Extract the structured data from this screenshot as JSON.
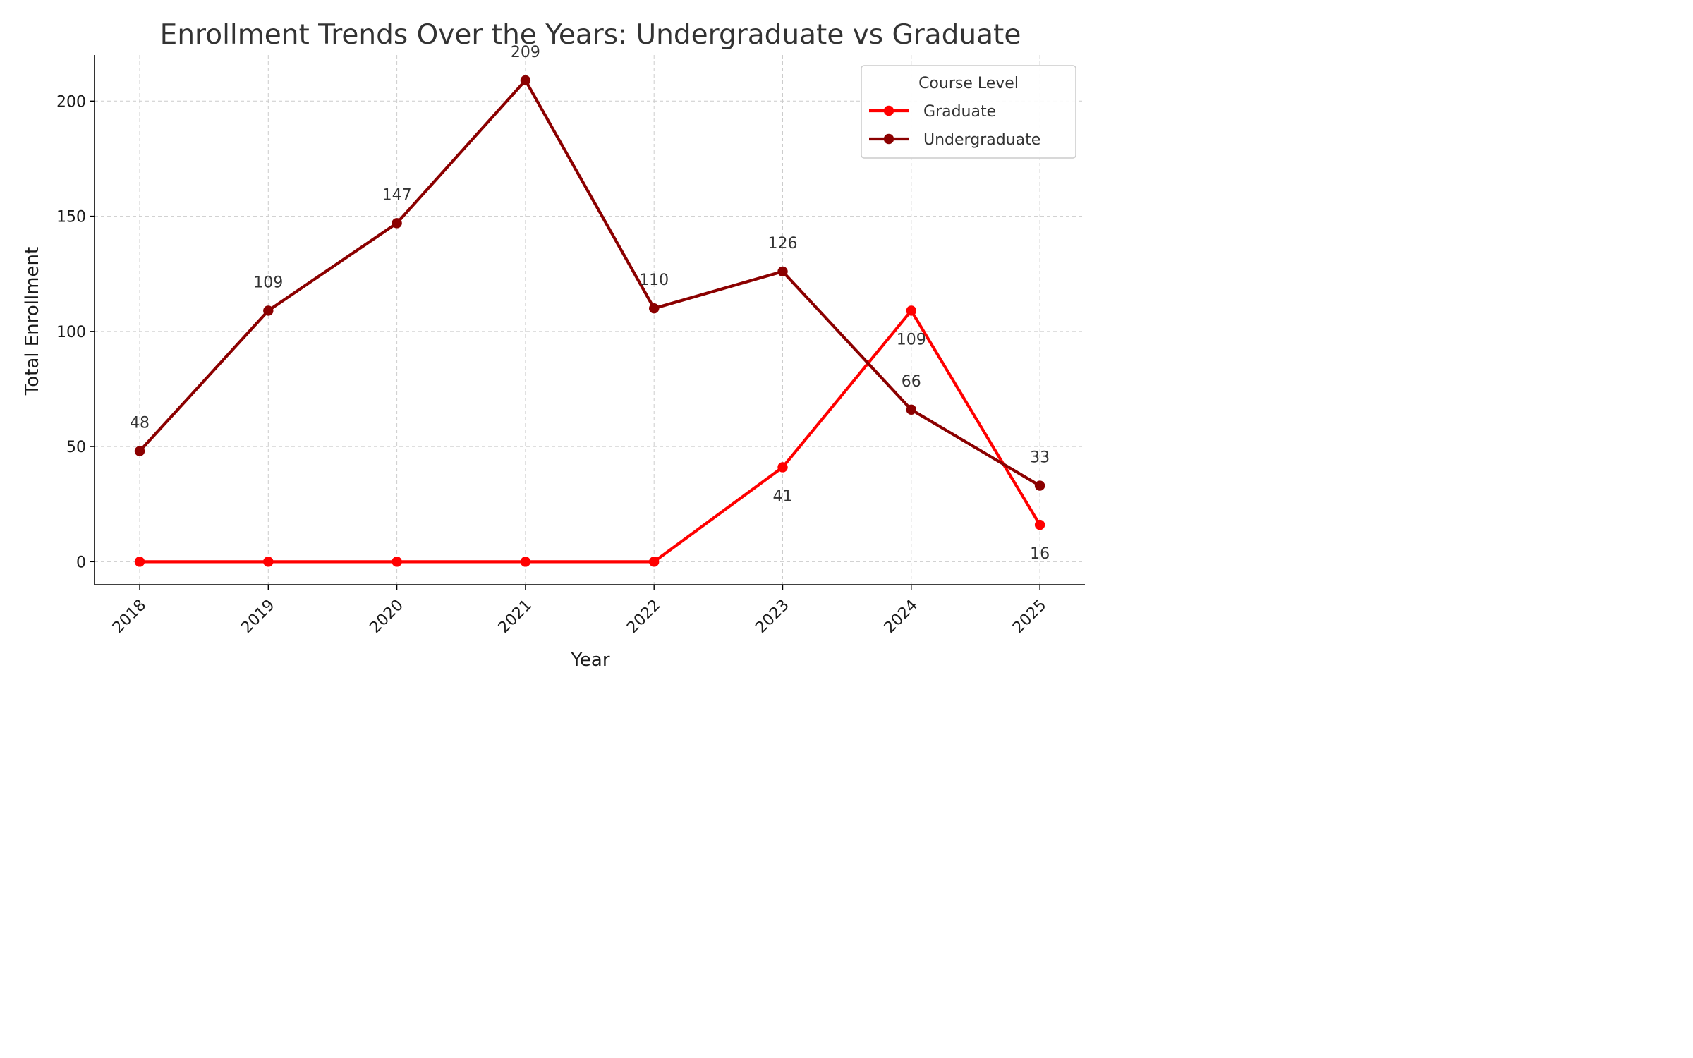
{
  "chart_data": {
    "type": "line",
    "title": "Enrollment Trends Over the Years: Undergraduate vs Graduate",
    "xlabel": "Year",
    "ylabel": "Total Enrollment",
    "x": [
      "2018",
      "2019",
      "2020",
      "2021",
      "2022",
      "2023",
      "2024",
      "2025"
    ],
    "yticks": [
      0,
      50,
      100,
      150,
      200
    ],
    "ylim": [
      -10,
      220
    ],
    "grid": true,
    "legend": {
      "title": "Course Level",
      "placement": "top-right"
    },
    "series": [
      {
        "name": "Graduate",
        "color": "#ff0000",
        "values": [
          0,
          0,
          0,
          0,
          0,
          41,
          109,
          16
        ],
        "data_labels": [
          null,
          null,
          null,
          null,
          null,
          "41",
          "109",
          "16"
        ],
        "label_position": "below"
      },
      {
        "name": "Undergraduate",
        "color": "#8b0000",
        "values": [
          48,
          109,
          147,
          209,
          110,
          126,
          66,
          33
        ],
        "data_labels": [
          "48",
          "109",
          "147",
          "209",
          "110",
          "126",
          "66",
          "33"
        ],
        "label_position": "above"
      }
    ]
  }
}
